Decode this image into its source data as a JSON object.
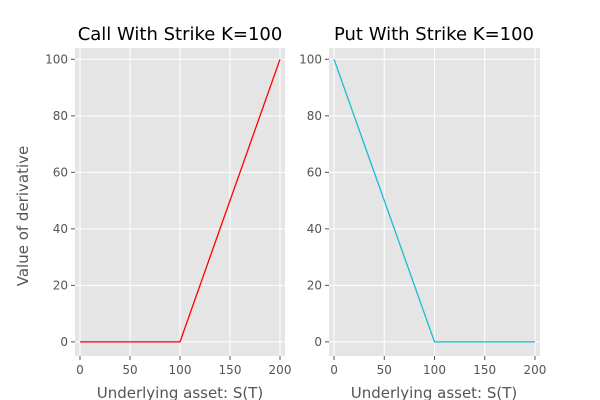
{
  "chart_data": [
    {
      "type": "line",
      "title": "Call With Strike K=100",
      "xlabel": "Underlying asset: S(T)",
      "ylabel": "Value of derivative",
      "xlim": [
        -5,
        205
      ],
      "ylim": [
        -5,
        104
      ],
      "grid": true,
      "x_ticks": [
        0,
        50,
        100,
        150,
        200
      ],
      "y_ticks": [
        0,
        20,
        40,
        60,
        80,
        100
      ],
      "series": [
        {
          "color": "#ff0000",
          "x": [
            0,
            100,
            200
          ],
          "y": [
            0,
            0,
            100
          ]
        }
      ]
    },
    {
      "type": "line",
      "title": "Put With Strike K=100",
      "xlabel": "Underlying asset: S(T)",
      "ylabel": "",
      "xlim": [
        -5,
        205
      ],
      "ylim": [
        -5,
        104
      ],
      "grid": true,
      "x_ticks": [
        0,
        50,
        100,
        150,
        200
      ],
      "y_ticks": [
        0,
        20,
        40,
        60,
        80,
        100
      ],
      "series": [
        {
          "color": "#17becf",
          "x": [
            0,
            100,
            200
          ],
          "y": [
            100,
            0,
            0
          ]
        }
      ]
    }
  ]
}
